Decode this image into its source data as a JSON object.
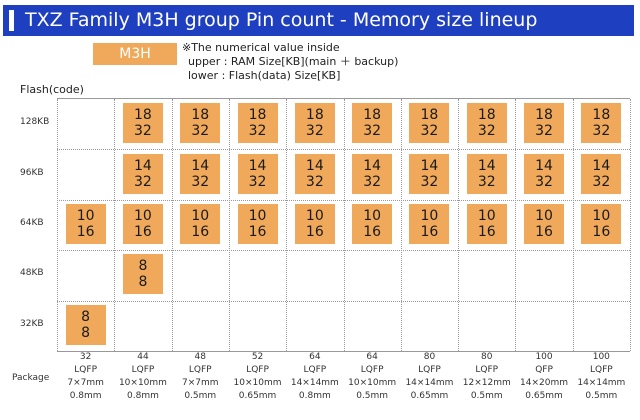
{
  "title": "TXZ Family M3H group Pin count - Memory size lineup",
  "legend": {
    "box_label": "M3H",
    "note_line1": "※The numerical value inside",
    "note_line2": "upper : RAM Size[KB](main ＋ backup)",
    "note_line3": "lower : Flash(data) Size[KB]"
  },
  "axis_label": "Flash(code)",
  "rows": [
    "128KB",
    "96KB",
    "64KB",
    "48KB",
    "32KB"
  ],
  "package_label": "Package",
  "columns": [
    {
      "pins": "32",
      "type": "LQFP",
      "size": "7×7mm",
      "pitch": "0.8mm"
    },
    {
      "pins": "44",
      "type": "LQFP",
      "size": "10×10mm",
      "pitch": "0.8mm"
    },
    {
      "pins": "48",
      "type": "LQFP",
      "size": "7×7mm",
      "pitch": "0.5mm"
    },
    {
      "pins": "52",
      "type": "LQFP",
      "size": "10×10mm",
      "pitch": "0.65mm"
    },
    {
      "pins": "64",
      "type": "LQFP",
      "size": "14×14mm",
      "pitch": "0.8mm"
    },
    {
      "pins": "64",
      "type": "LQFP",
      "size": "10×10mm",
      "pitch": "0.5mm"
    },
    {
      "pins": "80",
      "type": "LQFP",
      "size": "14×14mm",
      "pitch": "0.65mm"
    },
    {
      "pins": "80",
      "type": "LQFP",
      "size": "12×12mm",
      "pitch": "0.5mm"
    },
    {
      "pins": "100",
      "type": "QFP",
      "size": "14×20mm",
      "pitch": "0.65mm"
    },
    {
      "pins": "100",
      "type": "LQFP",
      "size": "14×14mm",
      "pitch": "0.5mm"
    }
  ],
  "cells": [
    {
      "row": 0,
      "col": 1,
      "upper": "18",
      "lower": "32"
    },
    {
      "row": 0,
      "col": 2,
      "upper": "18",
      "lower": "32"
    },
    {
      "row": 0,
      "col": 3,
      "upper": "18",
      "lower": "32"
    },
    {
      "row": 0,
      "col": 4,
      "upper": "18",
      "lower": "32"
    },
    {
      "row": 0,
      "col": 5,
      "upper": "18",
      "lower": "32"
    },
    {
      "row": 0,
      "col": 6,
      "upper": "18",
      "lower": "32"
    },
    {
      "row": 0,
      "col": 7,
      "upper": "18",
      "lower": "32"
    },
    {
      "row": 0,
      "col": 8,
      "upper": "18",
      "lower": "32"
    },
    {
      "row": 0,
      "col": 9,
      "upper": "18",
      "lower": "32"
    },
    {
      "row": 1,
      "col": 1,
      "upper": "14",
      "lower": "32"
    },
    {
      "row": 1,
      "col": 2,
      "upper": "14",
      "lower": "32"
    },
    {
      "row": 1,
      "col": 3,
      "upper": "14",
      "lower": "32"
    },
    {
      "row": 1,
      "col": 4,
      "upper": "14",
      "lower": "32"
    },
    {
      "row": 1,
      "col": 5,
      "upper": "14",
      "lower": "32"
    },
    {
      "row": 1,
      "col": 6,
      "upper": "14",
      "lower": "32"
    },
    {
      "row": 1,
      "col": 7,
      "upper": "14",
      "lower": "32"
    },
    {
      "row": 1,
      "col": 8,
      "upper": "14",
      "lower": "32"
    },
    {
      "row": 1,
      "col": 9,
      "upper": "14",
      "lower": "32"
    },
    {
      "row": 2,
      "col": 0,
      "upper": "10",
      "lower": "16"
    },
    {
      "row": 2,
      "col": 1,
      "upper": "10",
      "lower": "16"
    },
    {
      "row": 2,
      "col": 2,
      "upper": "10",
      "lower": "16"
    },
    {
      "row": 2,
      "col": 3,
      "upper": "10",
      "lower": "16"
    },
    {
      "row": 2,
      "col": 4,
      "upper": "10",
      "lower": "16"
    },
    {
      "row": 2,
      "col": 5,
      "upper": "10",
      "lower": "16"
    },
    {
      "row": 2,
      "col": 6,
      "upper": "10",
      "lower": "16"
    },
    {
      "row": 2,
      "col": 7,
      "upper": "10",
      "lower": "16"
    },
    {
      "row": 2,
      "col": 8,
      "upper": "10",
      "lower": "16"
    },
    {
      "row": 2,
      "col": 9,
      "upper": "10",
      "lower": "16"
    },
    {
      "row": 3,
      "col": 1,
      "upper": "8",
      "lower": "8"
    },
    {
      "row": 4,
      "col": 0,
      "upper": "8",
      "lower": "8"
    }
  ]
}
